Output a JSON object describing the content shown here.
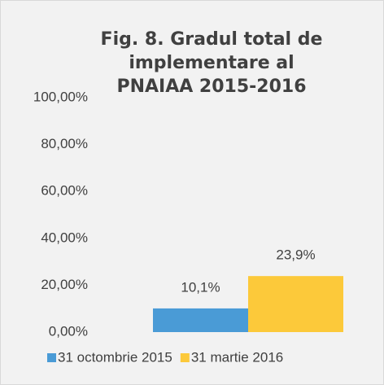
{
  "chart_data": {
    "type": "bar",
    "title": "Fig. 8. Gradul total de implementare al PNAIAA 2015-2016",
    "categories": [
      null
    ],
    "series": [
      {
        "name": "31 octombrie 2015",
        "color": "#4a9bd6",
        "values": [
          10.1
        ],
        "value_labels": [
          "10,1%"
        ]
      },
      {
        "name": "31 martie 2016",
        "color": "#fcc93a",
        "values": [
          23.9
        ],
        "value_labels": [
          "23,9%"
        ]
      }
    ],
    "ylim": [
      0,
      100
    ],
    "yticks": [
      {
        "value": 0,
        "label": "0,00%"
      },
      {
        "value": 20,
        "label": "20,00%"
      },
      {
        "value": 40,
        "label": "40,00%"
      },
      {
        "value": 60,
        "label": "60,00%"
      },
      {
        "value": 80,
        "label": "80,00%"
      },
      {
        "value": 100,
        "label": "100,00%"
      }
    ],
    "grid": false,
    "legend": "bottom"
  }
}
